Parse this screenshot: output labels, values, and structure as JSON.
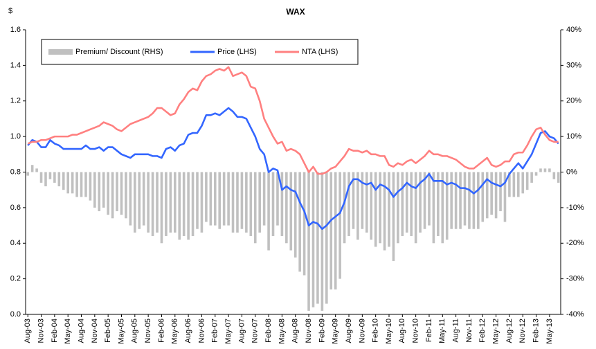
{
  "chart_data": {
    "type": "combo",
    "title": "WAX",
    "y_label": "$",
    "categories": [
      "Aug-03",
      null,
      null,
      "Nov-03",
      null,
      null,
      "Feb-04",
      null,
      null,
      "May-04",
      null,
      null,
      "Aug-04",
      null,
      null,
      "Nov-04",
      null,
      null,
      "Feb-05",
      null,
      null,
      "May-05",
      null,
      null,
      "Aug-05",
      null,
      null,
      "Nov-05",
      null,
      null,
      "Feb-06",
      null,
      null,
      "May-06",
      null,
      null,
      "Aug-06",
      null,
      null,
      "Nov-06",
      null,
      null,
      "Feb-07",
      null,
      null,
      "May-07",
      null,
      null,
      "Aug-07",
      null,
      null,
      "Nov-07",
      null,
      null,
      "Feb-08",
      null,
      null,
      "May-08",
      null,
      null,
      "Aug-08",
      null,
      null,
      "Nov-08",
      null,
      null,
      "Feb-09",
      null,
      null,
      "May-09",
      null,
      null,
      "Aug-09",
      null,
      null,
      "Nov-09",
      null,
      null,
      "Feb-10",
      null,
      null,
      "May-10",
      null,
      null,
      "Aug-10",
      null,
      null,
      "Nov-10",
      null,
      null,
      "Feb-11",
      null,
      null,
      "May-11",
      null,
      null,
      "Aug-11",
      null,
      null,
      "Nov-11",
      null,
      null,
      "Feb-12",
      null,
      null,
      "May-12",
      null,
      null,
      "Aug-12",
      null,
      null,
      "Nov-12",
      null,
      null,
      "Feb-13",
      null,
      null,
      "May-13",
      null,
      null
    ],
    "series": [
      {
        "name": "Premium/ Discount (RHS)",
        "type": "bar",
        "axis": "y2",
        "color": "#c0c0c0",
        "values": [
          -1,
          2,
          1,
          -3,
          -4,
          -2,
          -3,
          -4,
          -5,
          -6,
          -6,
          -7,
          -7,
          -7,
          -8,
          -10,
          -11,
          -10,
          -12,
          -13,
          -11,
          -12,
          -13,
          -15,
          -17,
          -16,
          -15,
          -17,
          -18,
          -17,
          -20,
          -18,
          -17,
          -17,
          -19,
          -18,
          -19,
          -18,
          -16,
          -17,
          -14,
          -15,
          -15,
          -16,
          -15,
          -15,
          -17,
          -17,
          -16,
          -17,
          -18,
          -20,
          -17,
          -15,
          -22,
          -18,
          -15,
          -18,
          -20,
          -22,
          -24,
          -28,
          -29,
          -39,
          -38,
          -37,
          -39,
          -37,
          -33,
          -33,
          -30,
          -20,
          -18,
          -16,
          -19,
          -16,
          -17,
          -19,
          -21,
          -20,
          -22,
          -21,
          -25,
          -20,
          -18,
          -17,
          -18,
          -20,
          -17,
          -16,
          -15,
          -20,
          -18,
          -20,
          -19,
          -16,
          -16,
          -16,
          -15,
          -16,
          -16,
          -16,
          -14,
          -13,
          -12,
          -13,
          -11,
          -14,
          -7,
          -7,
          -7,
          -6,
          -5,
          -3,
          -1,
          1,
          1,
          1,
          -2,
          -3
        ]
      },
      {
        "name": "Price (LHS)",
        "type": "line",
        "color": "#3366ff",
        "values": [
          0.95,
          0.98,
          0.97,
          0.94,
          0.94,
          0.98,
          0.96,
          0.95,
          0.93,
          0.93,
          0.93,
          0.93,
          0.93,
          0.95,
          0.93,
          0.93,
          0.94,
          0.92,
          0.94,
          0.94,
          0.92,
          0.9,
          0.89,
          0.88,
          0.9,
          0.9,
          0.9,
          0.9,
          0.89,
          0.89,
          0.88,
          0.93,
          0.94,
          0.92,
          0.95,
          0.96,
          1.01,
          1.02,
          1.02,
          1.06,
          1.12,
          1.12,
          1.13,
          1.12,
          1.14,
          1.16,
          1.14,
          1.11,
          1.11,
          1.1,
          1.05,
          1.0,
          0.93,
          0.9,
          0.8,
          0.82,
          0.81,
          0.7,
          0.72,
          0.7,
          0.69,
          0.63,
          0.58,
          0.5,
          0.52,
          0.51,
          0.48,
          0.5,
          0.53,
          0.55,
          0.57,
          0.63,
          0.72,
          0.76,
          0.76,
          0.74,
          0.73,
          0.74,
          0.7,
          0.73,
          0.72,
          0.7,
          0.66,
          0.69,
          0.71,
          0.74,
          0.72,
          0.71,
          0.74,
          0.76,
          0.79,
          0.75,
          0.75,
          0.75,
          0.73,
          0.74,
          0.73,
          0.71,
          0.71,
          0.7,
          0.68,
          0.7,
          0.73,
          0.76,
          0.74,
          0.73,
          0.72,
          0.74,
          0.79,
          0.82,
          0.85,
          0.82,
          0.86,
          0.9,
          0.96,
          1.02,
          1.03,
          1.0,
          0.99,
          0.96
        ]
      },
      {
        "name": "NTA (LHS)",
        "type": "line",
        "color": "#ff8080",
        "values": [
          0.96,
          0.97,
          0.97,
          0.98,
          0.98,
          0.99,
          1.0,
          1.0,
          1.0,
          1.0,
          1.01,
          1.01,
          1.02,
          1.03,
          1.04,
          1.05,
          1.06,
          1.08,
          1.07,
          1.06,
          1.04,
          1.03,
          1.05,
          1.07,
          1.08,
          1.09,
          1.1,
          1.11,
          1.13,
          1.16,
          1.16,
          1.14,
          1.12,
          1.13,
          1.18,
          1.21,
          1.25,
          1.27,
          1.26,
          1.31,
          1.34,
          1.35,
          1.37,
          1.38,
          1.37,
          1.39,
          1.34,
          1.35,
          1.36,
          1.34,
          1.28,
          1.27,
          1.2,
          1.1,
          1.05,
          1.0,
          0.96,
          0.97,
          0.92,
          0.93,
          0.92,
          0.9,
          0.85,
          0.8,
          0.83,
          0.79,
          0.79,
          0.8,
          0.82,
          0.83,
          0.86,
          0.89,
          0.93,
          0.92,
          0.92,
          0.91,
          0.92,
          0.9,
          0.9,
          0.89,
          0.89,
          0.84,
          0.83,
          0.85,
          0.84,
          0.86,
          0.87,
          0.85,
          0.87,
          0.89,
          0.92,
          0.9,
          0.9,
          0.89,
          0.89,
          0.88,
          0.87,
          0.85,
          0.83,
          0.82,
          0.82,
          0.84,
          0.86,
          0.88,
          0.84,
          0.83,
          0.84,
          0.86,
          0.86,
          0.9,
          0.91,
          0.91,
          0.95,
          1.0,
          1.04,
          1.05,
          1.01,
          0.98,
          0.97,
          0.97
        ]
      }
    ],
    "ylim": [
      0,
      1.6
    ],
    "yticks": [
      {
        "value": 0,
        "label": "0.0"
      },
      0.2,
      0.4,
      0.6,
      0.8,
      {
        "value": 1,
        "label": "1.0"
      },
      1.2,
      1.4,
      1.6
    ],
    "y2lim": [
      -40,
      40
    ],
    "y2ticks": [
      {
        "value": -40,
        "label": "-40%"
      },
      {
        "value": -30,
        "label": "-30%"
      },
      {
        "value": -20,
        "label": "-20%"
      },
      {
        "value": -10,
        "label": "-10%"
      },
      {
        "value": 0,
        "label": "0%"
      },
      {
        "value": 10,
        "label": "10%"
      },
      {
        "value": 20,
        "label": "20%"
      },
      {
        "value": 30,
        "label": "30%"
      },
      {
        "value": 40,
        "label": "40%"
      }
    ],
    "grid": false,
    "legend": "top-left"
  }
}
